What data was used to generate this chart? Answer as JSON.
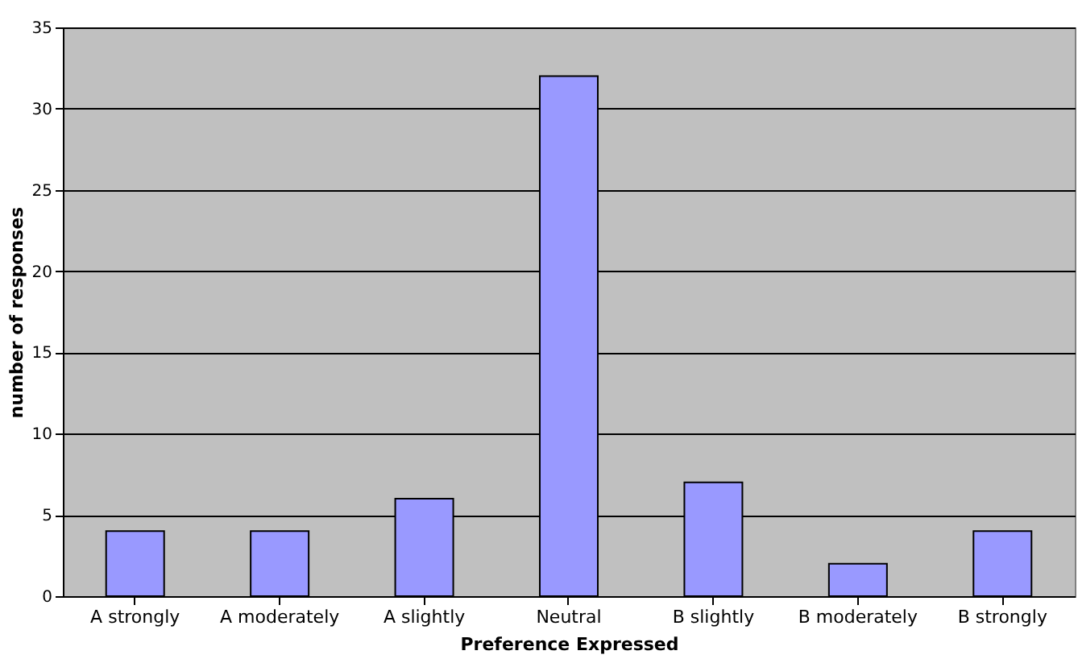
{
  "chart_data": {
    "type": "bar",
    "xlabel": "Preference Expressed",
    "ylabel": "number of responses",
    "categories": [
      "A strongly",
      "A moderately",
      "A slightly",
      "Neutral",
      "B slightly",
      "B moderately",
      "B strongly"
    ],
    "values": [
      4,
      4,
      6,
      32,
      7,
      2,
      4
    ],
    "color": "#9999ff",
    "ylim": [
      0,
      35
    ],
    "yticks": [
      0,
      5,
      10,
      15,
      20,
      25,
      30,
      35
    ],
    "grid": "y"
  }
}
